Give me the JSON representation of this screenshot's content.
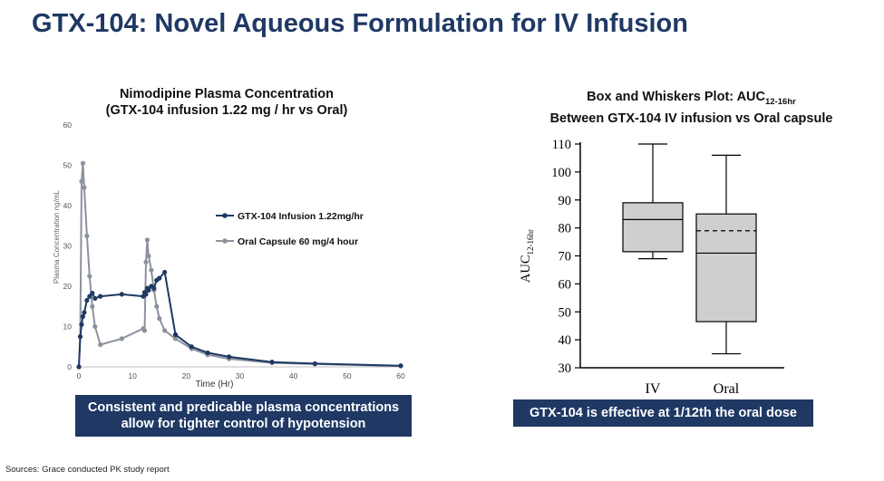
{
  "page": {
    "title": "GTX-104: Novel Aqueous Formulation for IV Infusion",
    "left_callout": "Consistent and predicable plasma concentrations allow for tighter control of hypotension",
    "right_callout": "GTX-104 is effective at 1/12th the oral dose",
    "source": "Sources: Grace conducted PK study report",
    "colors": {
      "title": "#1f3864",
      "callout_bg": "#1f3864",
      "iv_series": "#1f3864",
      "oral_series": "#8c929c",
      "box_fill": "#cfcfcf"
    }
  },
  "chart_data": [
    {
      "type": "line",
      "title_line1": "Nimodipine Plasma Concentration",
      "title_line2": "(GTX-104 infusion 1.22 mg / hr vs Oral)",
      "xlabel": "Time (Hr)",
      "ylabel": "Plasma Concentration ng/mL",
      "xlim": [
        0,
        60
      ],
      "ylim": [
        0,
        60
      ],
      "xticks": [
        0,
        10,
        20,
        30,
        40,
        50,
        60
      ],
      "yticks": [
        0,
        10,
        20,
        30,
        40,
        50,
        60
      ],
      "grid": false,
      "legend_position": "center-right",
      "series": [
        {
          "name": "GTX-104 Infusion 1.22mg/hr",
          "x": [
            0,
            0.25,
            0.5,
            0.75,
            1,
            1.5,
            2,
            2.5,
            3,
            4,
            8,
            12,
            12.25,
            12.5,
            12.75,
            13,
            13.5,
            14,
            14.5,
            15,
            16,
            18,
            21,
            24,
            28,
            36,
            44,
            60
          ],
          "y": [
            0,
            7.5,
            10.5,
            12.5,
            13.5,
            16.5,
            17.5,
            18.3,
            17,
            17.5,
            18,
            17.5,
            18.5,
            18,
            19.5,
            19,
            20,
            19.5,
            21.5,
            22,
            23.5,
            8,
            5,
            3.5,
            2.5,
            1.2,
            0.8,
            0.3
          ]
        },
        {
          "name": "Oral Capsule 60 mg/4 hour",
          "x": [
            0,
            0.25,
            0.5,
            0.75,
            1,
            1.5,
            2,
            2.5,
            3,
            4,
            8,
            12,
            12.25,
            12.5,
            12.75,
            13,
            13.5,
            14,
            14.5,
            15,
            16,
            18,
            21,
            24,
            28,
            36,
            44,
            60
          ],
          "y": [
            0,
            7.5,
            46,
            50.5,
            44.5,
            32.5,
            22.5,
            15,
            10,
            5.5,
            7,
            9.5,
            9,
            26,
            31.5,
            27.5,
            24,
            19,
            15,
            12,
            9,
            7,
            4.5,
            3,
            2,
            1,
            0.7,
            0.2
          ]
        }
      ]
    },
    {
      "type": "box",
      "title_line1": "Box and Whiskers Plot: AUC",
      "title_line1_sub": "12-16hr",
      "title_line2": "Between GTX-104 IV infusion vs Oral capsule",
      "ylabel": "AUC",
      "ylabel_sub": "12-16hr",
      "ylim": [
        30,
        110
      ],
      "yticks": [
        30,
        40,
        50,
        60,
        70,
        80,
        90,
        100,
        110
      ],
      "categories": [
        "IV",
        "Oral"
      ],
      "boxes": [
        {
          "name": "IV",
          "min": 69,
          "q1": 71.5,
          "median": 83,
          "q3": 89,
          "max": 110
        },
        {
          "name": "Oral",
          "min": 35,
          "q1": 46.5,
          "median": 71,
          "mean": 79,
          "q3": 85,
          "max": 106
        }
      ]
    }
  ]
}
